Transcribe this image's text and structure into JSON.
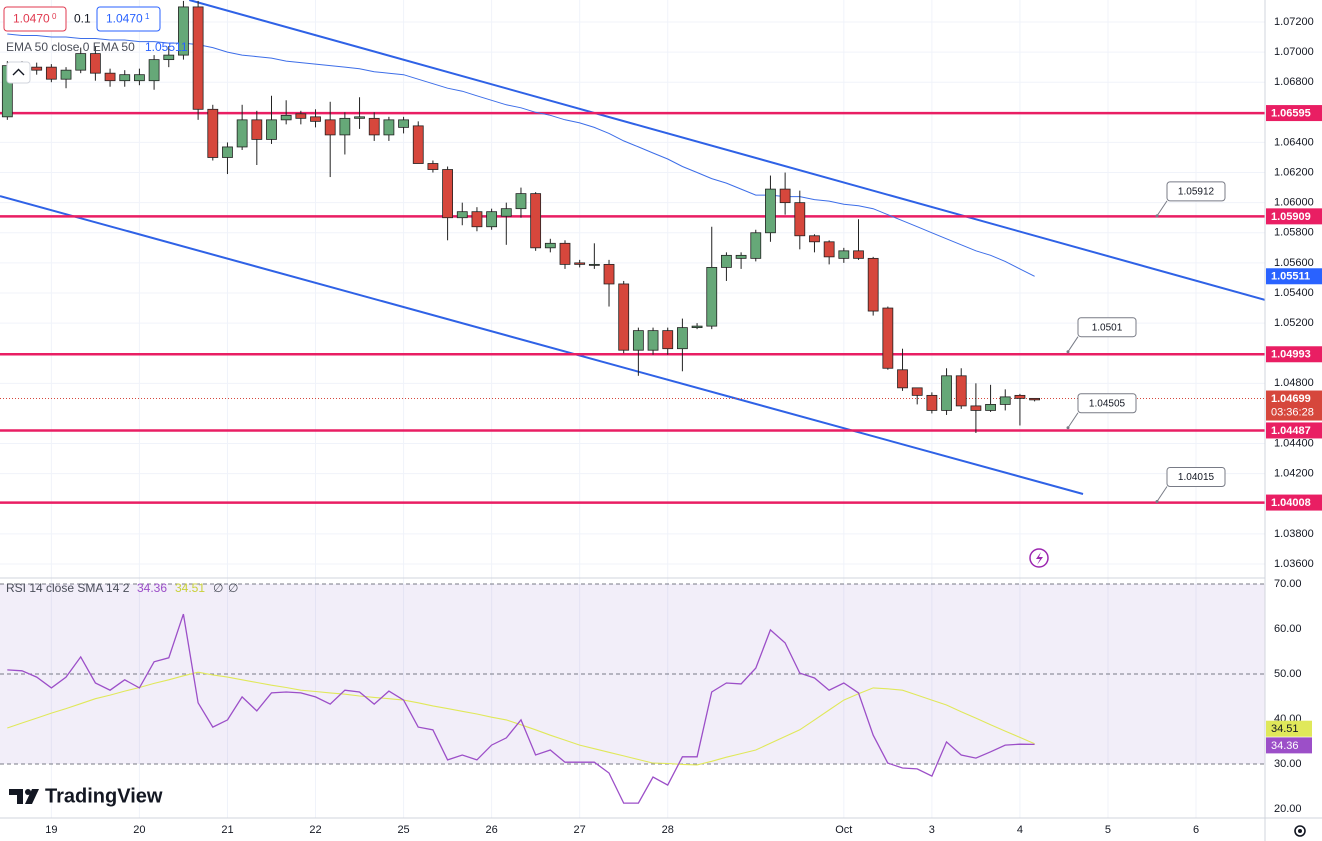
{
  "header": {
    "sell_price": "1.0470",
    "sell_price_sup": "0",
    "spread": "0.1",
    "buy_price": "1.0470",
    "buy_price_sup": "1"
  },
  "branding": "TradingView",
  "chart_data": [
    {
      "type": "candlestick",
      "up_color": "#66a878",
      "down_color": "#d6473c",
      "xlim": [
        -0.5,
        85.7
      ],
      "xticks": [
        {
          "value": 3,
          "label": "19"
        },
        {
          "value": 9,
          "label": "20"
        },
        {
          "value": 15,
          "label": "21"
        },
        {
          "value": 21,
          "label": "22"
        },
        {
          "value": 27,
          "label": "25"
        },
        {
          "value": 33,
          "label": "26"
        },
        {
          "value": 39,
          "label": "27"
        },
        {
          "value": 45,
          "label": "28"
        },
        {
          "value": 57,
          "label": "Oct"
        },
        {
          "value": 63,
          "label": "3"
        },
        {
          "value": 69,
          "label": "4"
        },
        {
          "value": 75,
          "label": "5"
        },
        {
          "value": 81,
          "label": "6"
        }
      ],
      "ylim": [
        1.03507,
        1.07346
      ],
      "yticks": [
        {
          "value": 1.072,
          "label": "1.07200"
        },
        {
          "value": 1.07,
          "label": "1.07000"
        },
        {
          "value": 1.068,
          "label": "1.06800"
        },
        {
          "value": 1.064,
          "label": "1.06400"
        },
        {
          "value": 1.062,
          "label": "1.06200"
        },
        {
          "value": 1.06,
          "label": "1.06000"
        },
        {
          "value": 1.058,
          "label": "1.05800"
        },
        {
          "value": 1.056,
          "label": "1.05600"
        },
        {
          "value": 1.054,
          "label": "1.05400"
        },
        {
          "value": 1.052,
          "label": "1.05200"
        },
        {
          "value": 1.048,
          "label": "1.04800"
        },
        {
          "value": 1.044,
          "label": "1.04400"
        },
        {
          "value": 1.042,
          "label": "1.04200"
        },
        {
          "value": 1.038,
          "label": "1.03800"
        },
        {
          "value": 1.036,
          "label": "1.03600"
        }
      ],
      "grid": true,
      "open": [
        1.0657,
        1.0689,
        1.069,
        1.069,
        1.0682,
        1.0688,
        1.0699,
        1.0686,
        1.0681,
        1.0681,
        1.0681,
        1.0695,
        1.0698,
        1.073,
        1.0662,
        1.063,
        1.0637,
        1.0655,
        1.0642,
        1.0655,
        1.0659,
        1.0657,
        1.0655,
        1.0645,
        1.0656,
        1.0656,
        1.0645,
        1.065,
        1.0651,
        1.0626,
        1.0622,
        1.059,
        1.0594,
        1.0584,
        1.0591,
        1.0596,
        1.0606,
        1.057,
        1.0573,
        1.056,
        1.0559,
        1.0559,
        1.0546,
        1.0502,
        1.0502,
        1.0515,
        1.0503,
        1.0517,
        1.0518,
        1.0557,
        1.0563,
        1.0563,
        1.058,
        1.0609,
        1.06,
        1.0578,
        1.0574,
        1.0563,
        1.0568,
        1.0563,
        1.053,
        1.0489,
        1.0477,
        1.0472,
        1.0462,
        1.0485,
        1.0465,
        1.0462,
        1.0466,
        1.0472,
        1.047
      ],
      "high": [
        1.0694,
        1.0694,
        1.0693,
        1.0692,
        1.069,
        1.0703,
        1.0704,
        1.0689,
        1.0688,
        1.0689,
        1.0698,
        1.0704,
        1.0734,
        1.0734,
        1.0665,
        1.064,
        1.0665,
        1.0661,
        1.0671,
        1.0668,
        1.0661,
        1.0662,
        1.0667,
        1.066,
        1.067,
        1.066,
        1.0657,
        1.0657,
        1.0654,
        1.0628,
        1.0624,
        1.06,
        1.0597,
        1.0596,
        1.06,
        1.061,
        1.0607,
        1.0576,
        1.0575,
        1.0562,
        1.0573,
        1.0562,
        1.0548,
        1.0517,
        1.0517,
        1.0517,
        1.0523,
        1.052,
        1.0584,
        1.0567,
        1.0567,
        1.0582,
        1.0618,
        1.062,
        1.0608,
        1.0579,
        1.0575,
        1.057,
        1.0589,
        1.0564,
        1.0531,
        1.0503,
        1.0477,
        1.0474,
        1.049,
        1.049,
        1.048,
        1.0479,
        1.0476,
        1.0473,
        1.047
      ],
      "low": [
        1.0655,
        1.0686,
        1.0685,
        1.068,
        1.0676,
        1.0686,
        1.0681,
        1.0677,
        1.0677,
        1.0678,
        1.0675,
        1.069,
        1.0695,
        1.0655,
        1.0628,
        1.0619,
        1.0635,
        1.0625,
        1.0639,
        1.0652,
        1.0652,
        1.065,
        1.0617,
        1.0632,
        1.0649,
        1.0641,
        1.0641,
        1.0646,
        1.0626,
        1.062,
        1.0575,
        1.0585,
        1.0581,
        1.0582,
        1.0572,
        1.059,
        1.0568,
        1.0567,
        1.0556,
        1.0557,
        1.0556,
        1.0531,
        1.05,
        1.0485,
        1.0499,
        1.0499,
        1.0488,
        1.0516,
        1.0516,
        1.0548,
        1.0556,
        1.0561,
        1.0574,
        1.0592,
        1.0569,
        1.0567,
        1.0559,
        1.056,
        1.0562,
        1.0525,
        1.0489,
        1.0475,
        1.0466,
        1.046,
        1.0459,
        1.0463,
        1.0447,
        1.0461,
        1.0462,
        1.0452,
        1.0468
      ],
      "close": [
        1.0691,
        1.0691,
        1.0688,
        1.0682,
        1.0688,
        1.0699,
        1.0686,
        1.0681,
        1.0685,
        1.0685,
        1.0695,
        1.0698,
        1.073,
        1.0662,
        1.063,
        1.0637,
        1.0655,
        1.0642,
        1.0655,
        1.0658,
        1.0656,
        1.0654,
        1.0645,
        1.0656,
        1.0657,
        1.0645,
        1.0655,
        1.0655,
        1.0626,
        1.0622,
        1.059,
        1.0594,
        1.0584,
        1.0594,
        1.0596,
        1.0606,
        1.057,
        1.0573,
        1.0559,
        1.0559,
        1.0559,
        1.0546,
        1.0502,
        1.0515,
        1.0515,
        1.0503,
        1.0517,
        1.0518,
        1.0557,
        1.0565,
        1.0565,
        1.058,
        1.0609,
        1.06,
        1.0578,
        1.0574,
        1.0564,
        1.0568,
        1.0563,
        1.0528,
        1.049,
        1.0477,
        1.0472,
        1.0462,
        1.0485,
        1.0465,
        1.0462,
        1.0466,
        1.0471,
        1.047,
        1.0469
      ],
      "ema": {
        "name": "EMA 50 close 0 EMA 50",
        "color": "#3d6ee8",
        "last_value": 1.05511,
        "values": [
          1.0712,
          1.0711,
          1.0711,
          1.071,
          1.071,
          1.0709,
          1.0709,
          1.0708,
          1.0708,
          1.0707,
          1.0707,
          1.0706,
          1.0706,
          1.0705,
          1.0703,
          1.07,
          1.0698,
          1.0697,
          1.0696,
          1.0694,
          1.0693,
          1.0692,
          1.0691,
          1.069,
          1.0689,
          1.0687,
          1.0686,
          1.0685,
          1.0682,
          1.0679,
          1.0676,
          1.0674,
          1.0671,
          1.0668,
          1.0665,
          1.0663,
          1.066,
          1.0658,
          1.0655,
          1.0653,
          1.065,
          1.0646,
          1.0641,
          1.0637,
          1.0633,
          1.0629,
          1.0624,
          1.062,
          1.0616,
          1.0613,
          1.0609,
          1.0605,
          1.0605,
          1.0604,
          1.0604,
          1.0602,
          1.0601,
          1.0599,
          1.0598,
          1.0596,
          1.0592,
          1.0588,
          1.0584,
          1.058,
          1.0576,
          1.0572,
          1.0568,
          1.0565,
          1.0561,
          1.0556,
          1.05511
        ]
      },
      "levels": [
        1.06595,
        1.05909,
        1.04993,
        1.04487,
        1.04008
      ],
      "level_color": "#e91e63",
      "annotations": [
        1.05912,
        1.0501,
        1.04505,
        1.04015
      ],
      "last_price": 1.04699,
      "countdown": "03:36:28",
      "trend_lines": [
        {
          "color": "#2f62e6",
          "points": [
            [
              12.4,
              1.07346
            ],
            [
              85.7,
              1.05354
            ]
          ]
        },
        {
          "color": "#2f62e6",
          "points": [
            [
              -0.5,
              1.06044
            ],
            [
              73.3,
              1.04065
            ]
          ]
        }
      ]
    },
    {
      "type": "line",
      "legend": "RSI 14 close SMA 14 2",
      "legend_extra": [
        "∅",
        "∅"
      ],
      "ylim": [
        18,
        71.33
      ],
      "yticks": [
        {
          "value": 20,
          "label": "20.00"
        },
        {
          "value": 30,
          "label": "30.00"
        },
        {
          "value": 40,
          "label": "40.00"
        },
        {
          "value": 50,
          "label": "50.00"
        },
        {
          "value": 60,
          "label": "60.00"
        },
        {
          "value": 70,
          "label": "70.00"
        }
      ],
      "band": [
        30,
        70
      ],
      "levels": [
        70,
        50,
        30
      ],
      "series": [
        {
          "color": "#9c4fc8",
          "values": [
            50.9,
            50.7,
            49.3,
            46.9,
            49.3,
            53.8,
            48.0,
            46.4,
            48.7,
            46.9,
            52.7,
            53.6,
            63.3,
            43.6,
            38.2,
            39.8,
            44.9,
            41.8,
            45.8,
            46.0,
            45.8,
            44.9,
            43.3,
            46.4,
            46.0,
            43.3,
            46.2,
            44.2,
            38.2,
            37.6,
            30.9,
            32.0,
            30.9,
            34.2,
            35.8,
            39.8,
            32.0,
            33.1,
            30.4,
            30.4,
            30.4,
            28.0,
            21.3,
            21.3,
            27.1,
            25.3,
            31.6,
            31.6,
            46.0,
            48.0,
            47.8,
            51.3,
            59.8,
            56.9,
            50.2,
            49.1,
            46.4,
            48.0,
            45.8,
            36.4,
            30.2,
            29.1,
            28.9,
            27.3,
            34.9,
            32.0,
            31.3,
            32.7,
            34.2,
            34.4,
            34.36
          ]
        },
        {
          "color": "#e0e85a",
          "values": [
            38.0,
            39.1,
            40.2,
            41.3,
            42.3,
            43.4,
            44.5,
            45.3,
            46.2,
            47.0,
            47.9,
            48.7,
            49.6,
            50.4,
            49.8,
            49.3,
            48.7,
            48.1,
            47.5,
            47.0,
            46.4,
            46.1,
            45.8,
            45.5,
            45.1,
            44.8,
            44.5,
            44.2,
            43.6,
            42.9,
            42.3,
            41.7,
            41.1,
            40.4,
            39.8,
            38.7,
            37.6,
            36.4,
            35.3,
            34.2,
            33.4,
            32.6,
            31.8,
            31.0,
            30.2,
            30.1,
            29.9,
            29.8,
            30.6,
            31.5,
            32.3,
            33.1,
            34.6,
            36.1,
            37.6,
            39.8,
            42.0,
            44.2,
            45.6,
            46.9,
            46.7,
            46.4,
            45.3,
            44.2,
            43.1,
            41.6,
            40.2,
            38.7,
            37.3,
            35.9,
            34.51
          ]
        }
      ]
    }
  ]
}
